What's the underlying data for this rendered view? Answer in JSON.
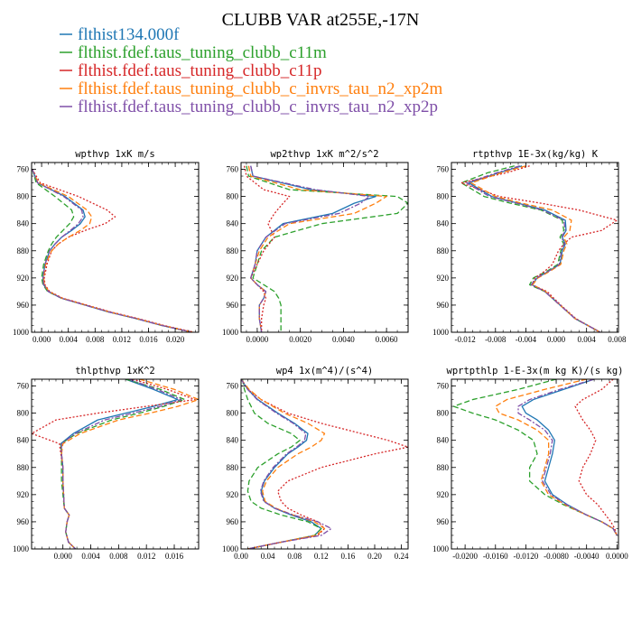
{
  "title": "CLUBB VAR at255E,-17N",
  "legend": [
    {
      "name": "flthist134.000f",
      "color": "#1f77b4"
    },
    {
      "name": "flthist.fdef.taus_tuning_clubb_c11m",
      "color": "#2ca02c"
    },
    {
      "name": "flthist.fdef.taus_tuning_clubb_c11p",
      "color": "#d62728"
    },
    {
      "name": "flthist.fdef.taus_tuning_clubb_c_invrs_tau_n2_xp2m",
      "color": "#ff7f0e"
    },
    {
      "name": "flthist.fdef.taus_tuning_clubb_c_invrs_tau_n2_xp2p",
      "color": "#7f4fa8"
    }
  ],
  "chart_data": [
    {
      "type": "line",
      "title": "wpthvp  1xK m/s",
      "xlim": [
        -0.0015,
        0.0235
      ],
      "ylim": [
        1000,
        750
      ],
      "xticks": [
        0.0,
        0.004,
        0.008,
        0.012,
        0.016,
        0.02
      ],
      "xtick_labels": [
        "0.000",
        "0.004",
        "0.008",
        "0.012",
        "0.016",
        "0.020"
      ],
      "yticks": [
        760,
        800,
        840,
        880,
        920,
        960,
        1000
      ],
      "y": [
        760,
        780,
        800,
        820,
        830,
        840,
        850,
        860,
        870,
        880,
        900,
        920,
        930,
        940,
        950,
        960,
        970,
        980,
        990,
        1000
      ],
      "series": [
        {
          "values": [
            -0.0014,
            -0.0006,
            0.0035,
            0.0062,
            0.0065,
            0.0058,
            0.0045,
            0.003,
            0.002,
            0.0012,
            0.0005,
            0.0002,
            0.0003,
            0.001,
            0.003,
            0.0065,
            0.01,
            0.0142,
            0.018,
            0.0225
          ]
        },
        {
          "values": [
            -0.0014,
            -0.0008,
            0.002,
            0.0045,
            0.0048,
            0.0042,
            0.0032,
            0.0022,
            0.0015,
            0.001,
            0.0003,
            0.0,
            0.0002,
            0.0009,
            0.003,
            0.0065,
            0.01,
            0.0142,
            0.018,
            0.0225
          ]
        },
        {
          "values": [
            -0.0014,
            -0.0002,
            0.0055,
            0.0098,
            0.011,
            0.0095,
            0.0065,
            0.004,
            0.0025,
            0.0015,
            0.0008,
            0.0004,
            0.0005,
            0.0012,
            0.0032,
            0.0068,
            0.0103,
            0.0145,
            0.0183,
            0.0228
          ]
        },
        {
          "values": [
            -0.0014,
            -0.0005,
            0.004,
            0.0068,
            0.0075,
            0.0072,
            0.0058,
            0.004,
            0.0025,
            0.0015,
            0.0006,
            0.0003,
            0.0004,
            0.0011,
            0.0031,
            0.0066,
            0.0101,
            0.0143,
            0.0181,
            0.0226
          ]
        },
        {
          "values": [
            -0.0014,
            -0.0006,
            0.0033,
            0.006,
            0.0062,
            0.0055,
            0.0043,
            0.003,
            0.002,
            0.0012,
            0.0005,
            0.0002,
            0.0003,
            0.001,
            0.003,
            0.0065,
            0.01,
            0.0142,
            0.018,
            0.0225
          ]
        }
      ]
    },
    {
      "type": "line",
      "title": "wp2thvp  1xK m^2/s^2",
      "xlim": [
        -0.00075,
        0.007
      ],
      "ylim": [
        1000,
        750
      ],
      "xticks": [
        0.0,
        0.002,
        0.004,
        0.006
      ],
      "xtick_labels": [
        "0.0000",
        "0.0020",
        "0.0040",
        "0.0060"
      ],
      "yticks": [
        760,
        800,
        840,
        880,
        920,
        960,
        1000
      ],
      "y": [
        755,
        770,
        790,
        800,
        810,
        825,
        840,
        860,
        880,
        900,
        920,
        930,
        940,
        950,
        960,
        980,
        1000
      ],
      "series": [
        {
          "values": [
            -0.0003,
            -0.0002,
            0.0025,
            0.0055,
            0.0045,
            0.0035,
            0.0012,
            0.0004,
            0.0,
            -0.0001,
            -0.0003,
            0.0,
            0.0004,
            0.0003,
            0.0001,
            0.0001,
            0.0002
          ]
        },
        {
          "values": [
            -0.0005,
            -0.0004,
            0.0015,
            0.0065,
            0.007,
            0.0065,
            0.003,
            0.0008,
            0.0002,
            0.0,
            -0.0002,
            0.0003,
            0.0008,
            0.001,
            0.0011,
            0.0011,
            0.0011
          ]
        },
        {
          "values": [
            -0.0006,
            -0.0005,
            0.0003,
            0.0015,
            0.0012,
            0.0008,
            0.0005,
            0.0008,
            0.0003,
            0.0,
            -0.0003,
            0.0,
            0.0003,
            0.0004,
            0.0003,
            0.0002,
            0.0002
          ]
        },
        {
          "values": [
            -0.0004,
            -0.0003,
            0.002,
            0.006,
            0.0055,
            0.0045,
            0.0015,
            0.0005,
            0.0001,
            -0.0001,
            -0.0003,
            0.0,
            0.0004,
            0.0003,
            0.0001,
            0.0001,
            0.0002
          ]
        },
        {
          "values": [
            -0.0003,
            -0.0002,
            0.0027,
            0.0052,
            0.0048,
            0.0038,
            0.0013,
            0.0004,
            0.0,
            -0.0001,
            -0.0003,
            0.0,
            0.0004,
            0.0003,
            0.0001,
            0.0001,
            0.0002
          ]
        }
      ]
    },
    {
      "type": "line",
      "title": "rtpthvp  1E-3x(kg/kg) K",
      "xlim": [
        -0.0138,
        0.0082
      ],
      "ylim": [
        1000,
        750
      ],
      "xticks": [
        -0.012,
        -0.008,
        -0.004,
        0.0,
        0.004,
        0.008
      ],
      "xtick_labels": [
        "-0.012",
        "-0.008",
        "-0.004",
        "0.000",
        "0.004",
        "0.008"
      ],
      "yticks": [
        760,
        800,
        840,
        880,
        920,
        960,
        1000
      ],
      "y": [
        755,
        765,
        780,
        800,
        810,
        820,
        835,
        850,
        860,
        870,
        880,
        900,
        910,
        920,
        930,
        940,
        950,
        960,
        980,
        1000
      ],
      "series": [
        {
          "values": [
            -0.0045,
            -0.0075,
            -0.0115,
            -0.0085,
            -0.005,
            -0.0015,
            0.0012,
            0.0013,
            0.0008,
            0.0012,
            0.0008,
            0.0005,
            -0.001,
            -0.0025,
            -0.0032,
            -0.0015,
            -0.0005,
            0.0005,
            0.0025,
            0.0058
          ]
        },
        {
          "values": [
            -0.0055,
            -0.009,
            -0.0125,
            -0.0095,
            -0.006,
            -0.002,
            0.0008,
            0.001,
            0.0005,
            0.001,
            0.0006,
            0.0002,
            -0.0012,
            -0.003,
            -0.0035,
            -0.0015,
            -0.0005,
            0.0005,
            0.0025,
            0.0058
          ]
        },
        {
          "values": [
            -0.0035,
            -0.0065,
            -0.0125,
            -0.0075,
            -0.002,
            0.003,
            0.008,
            0.006,
            0.002,
            0.001,
            0.0003,
            -0.0005,
            -0.0015,
            -0.0028,
            -0.0032,
            -0.0012,
            -0.0003,
            0.0006,
            0.0026,
            0.0058
          ]
        },
        {
          "values": [
            -0.004,
            -0.0072,
            -0.0112,
            -0.008,
            -0.0045,
            -0.0005,
            0.002,
            0.0018,
            0.001,
            0.0014,
            0.001,
            0.0006,
            -0.0008,
            -0.0024,
            -0.0031,
            -0.0014,
            -0.0005,
            0.0005,
            0.0025,
            0.0058
          ]
        },
        {
          "values": [
            -0.0048,
            -0.0078,
            -0.0118,
            -0.0088,
            -0.0052,
            -0.0018,
            0.001,
            0.0012,
            0.0007,
            0.0011,
            0.0007,
            0.0004,
            -0.001,
            -0.0026,
            -0.0033,
            -0.0015,
            -0.0005,
            0.0005,
            0.0025,
            0.0058
          ]
        }
      ]
    },
    {
      "type": "line",
      "title": "thlpthvp  1xK^2",
      "xlim": [
        -0.0045,
        0.0195
      ],
      "ylim": [
        1000,
        750
      ],
      "xticks": [
        0.0,
        0.004,
        0.008,
        0.012,
        0.016
      ],
      "xtick_labels": [
        "0.000",
        "0.004",
        "0.008",
        "0.012",
        "0.016"
      ],
      "yticks": [
        760,
        800,
        840,
        880,
        920,
        960,
        1000
      ],
      "y": [
        750,
        765,
        780,
        790,
        800,
        810,
        830,
        845,
        860,
        880,
        900,
        920,
        940,
        950,
        960,
        975,
        990,
        1000
      ],
      "series": [
        {
          "values": [
            0.009,
            0.013,
            0.0165,
            0.013,
            0.009,
            0.005,
            0.0015,
            -0.0003,
            -0.0002,
            0.0,
            0.0,
            0.0001,
            0.0002,
            0.0009,
            0.0006,
            0.0004,
            0.0008,
            0.0018
          ]
        },
        {
          "values": [
            0.009,
            0.014,
            0.0175,
            0.0145,
            0.011,
            0.007,
            0.002,
            -0.0003,
            -0.0002,
            -0.0002,
            -0.0002,
            0.0,
            0.0002,
            0.0009,
            0.0006,
            0.0004,
            0.0008,
            0.0018
          ]
        },
        {
          "values": [
            0.01,
            0.015,
            0.019,
            0.012,
            0.005,
            -0.001,
            -0.0045,
            -0.0005,
            -0.0003,
            0.0,
            0.0,
            0.0001,
            0.0002,
            0.0009,
            0.0006,
            0.0004,
            0.0008,
            0.0018
          ]
        },
        {
          "values": [
            0.011,
            0.016,
            0.0195,
            0.0165,
            0.0125,
            0.008,
            0.0025,
            0.0,
            -0.0002,
            0.0,
            0.0,
            0.0001,
            0.0002,
            0.0009,
            0.0006,
            0.0004,
            0.0008,
            0.0018
          ]
        },
        {
          "values": [
            0.0095,
            0.0135,
            0.017,
            0.014,
            0.01,
            0.006,
            0.0018,
            -0.0002,
            -0.0002,
            0.0,
            0.0,
            0.0001,
            0.0002,
            0.0009,
            0.0006,
            0.0004,
            0.0008,
            0.0018
          ]
        }
      ]
    },
    {
      "type": "line",
      "title": "wp4  1x(m^4)/(s^4)",
      "xlim": [
        0.0,
        0.25
      ],
      "ylim": [
        1000,
        750
      ],
      "xticks": [
        0.0,
        0.04,
        0.08,
        0.12,
        0.16,
        0.2,
        0.24
      ],
      "xtick_labels": [
        "0.00",
        "0.04",
        "0.08",
        "0.12",
        "0.16",
        "0.20",
        "0.24"
      ],
      "yticks": [
        760,
        800,
        840,
        880,
        920,
        960,
        1000
      ],
      "y": [
        750,
        765,
        780,
        800,
        815,
        830,
        840,
        850,
        860,
        880,
        900,
        915,
        930,
        940,
        950,
        960,
        970,
        980,
        990,
        1000
      ],
      "series": [
        {
          "values": [
            0.0,
            0.01,
            0.025,
            0.055,
            0.08,
            0.1,
            0.098,
            0.085,
            0.07,
            0.05,
            0.035,
            0.03,
            0.035,
            0.05,
            0.075,
            0.105,
            0.12,
            0.11,
            0.06,
            0.01
          ]
        },
        {
          "values": [
            0.002,
            0.005,
            0.01,
            0.02,
            0.04,
            0.075,
            0.088,
            0.075,
            0.055,
            0.025,
            0.012,
            0.01,
            0.015,
            0.03,
            0.06,
            0.1,
            0.12,
            0.11,
            0.06,
            0.01
          ]
        },
        {
          "values": [
            0.0,
            0.01,
            0.03,
            0.07,
            0.12,
            0.18,
            0.22,
            0.25,
            0.2,
            0.12,
            0.07,
            0.055,
            0.06,
            0.07,
            0.09,
            0.115,
            0.125,
            0.115,
            0.06,
            0.01
          ]
        },
        {
          "values": [
            0.0,
            0.012,
            0.03,
            0.065,
            0.1,
            0.125,
            0.12,
            0.105,
            0.085,
            0.055,
            0.038,
            0.032,
            0.036,
            0.052,
            0.078,
            0.11,
            0.125,
            0.112,
            0.06,
            0.01
          ]
        },
        {
          "values": [
            0.0,
            0.01,
            0.024,
            0.053,
            0.078,
            0.097,
            0.095,
            0.083,
            0.068,
            0.048,
            0.034,
            0.029,
            0.034,
            0.05,
            0.078,
            0.115,
            0.135,
            0.12,
            0.06,
            0.01
          ]
        }
      ]
    },
    {
      "type": "line",
      "title": "wprtpthlp  1-E-3x(m kg K)/(s kg)",
      "xlim": [
        -0.0218,
        0.0002
      ],
      "ylim": [
        1000,
        750
      ],
      "xticks": [
        -0.02,
        -0.016,
        -0.012,
        -0.008,
        -0.004,
        0.0
      ],
      "xtick_labels": [
        "-0.0200",
        "-0.0160",
        "-0.0120",
        "-0.0080",
        "-0.0040",
        "0.0000"
      ],
      "yticks": [
        760,
        800,
        840,
        880,
        920,
        960,
        1000
      ],
      "y": [
        750,
        765,
        780,
        790,
        800,
        810,
        825,
        840,
        860,
        880,
        900,
        920,
        935,
        950,
        960,
        970,
        980
      ],
      "series": [
        {
          "values": [
            -0.003,
            -0.007,
            -0.011,
            -0.0125,
            -0.012,
            -0.0105,
            -0.009,
            -0.0082,
            -0.0085,
            -0.009,
            -0.0095,
            -0.0085,
            -0.0065,
            -0.004,
            -0.002,
            -0.0005,
            0.0
          ]
        },
        {
          "values": [
            -0.008,
            -0.013,
            -0.019,
            -0.0215,
            -0.019,
            -0.016,
            -0.013,
            -0.011,
            -0.0105,
            -0.0115,
            -0.0115,
            -0.0095,
            -0.007,
            -0.004,
            -0.002,
            -0.0005,
            0.0
          ]
        },
        {
          "values": [
            -0.0005,
            -0.002,
            -0.0045,
            -0.0055,
            -0.005,
            -0.0045,
            -0.0035,
            -0.0028,
            -0.0035,
            -0.0045,
            -0.005,
            -0.004,
            -0.0025,
            -0.0015,
            -0.0008,
            -0.0003,
            0.0
          ]
        },
        {
          "values": [
            -0.004,
            -0.0095,
            -0.0145,
            -0.016,
            -0.0155,
            -0.013,
            -0.0105,
            -0.009,
            -0.009,
            -0.0095,
            -0.01,
            -0.009,
            -0.0068,
            -0.004,
            -0.002,
            -0.0005,
            0.0
          ]
        },
        {
          "values": [
            -0.003,
            -0.0075,
            -0.0115,
            -0.013,
            -0.013,
            -0.0115,
            -0.0095,
            -0.0085,
            -0.0088,
            -0.0093,
            -0.0098,
            -0.0087,
            -0.0066,
            -0.004,
            -0.002,
            -0.0005,
            0.0
          ]
        }
      ]
    }
  ]
}
